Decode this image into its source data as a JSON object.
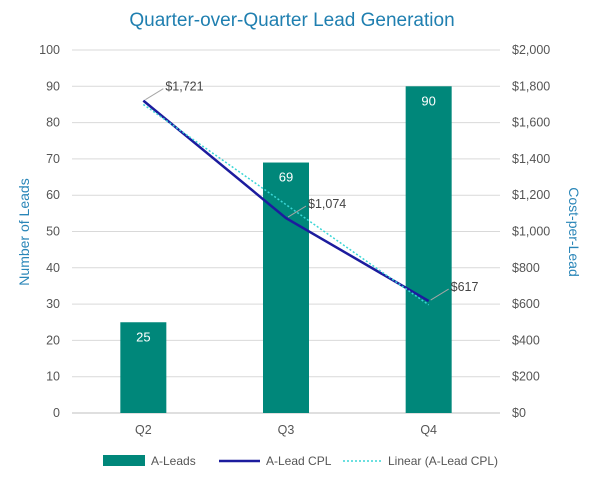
{
  "chart_data": {
    "type": "bar",
    "title": "Quarter-over-Quarter Lead Generation",
    "categories": [
      "Q2",
      "Q3",
      "Q4"
    ],
    "ylabel": "Number of Leads",
    "y2label": "Cost-per-Lead",
    "ylim": [
      0,
      100
    ],
    "y2lim": [
      0,
      2000
    ],
    "yticks": [
      "0",
      "10",
      "20",
      "30",
      "40",
      "50",
      "60",
      "70",
      "80",
      "90",
      "100"
    ],
    "y2ticks": [
      "$0",
      "$200",
      "$400",
      "$600",
      "$800",
      "$1,000",
      "$1,200",
      "$1,400",
      "$1,600",
      "$1,800",
      "$2,000"
    ],
    "grid": true,
    "legend_position": "bottom",
    "series": [
      {
        "name": "A-Leads",
        "type": "bar",
        "axis": "left",
        "values": [
          25,
          69,
          90
        ],
        "labels": [
          "25",
          "69",
          "90"
        ],
        "color": "#00877a"
      },
      {
        "name": "A-Lead CPL",
        "type": "line",
        "axis": "right",
        "values": [
          1721,
          1074,
          617
        ],
        "labels": [
          "$1,721",
          "$1,074",
          "$617"
        ],
        "color": "#1c1c9e"
      },
      {
        "name": "Linear (A-Lead CPL)",
        "type": "trendline",
        "axis": "right",
        "values": [
          1700,
          1148,
          596
        ],
        "color": "#3ad6d6"
      }
    ]
  }
}
